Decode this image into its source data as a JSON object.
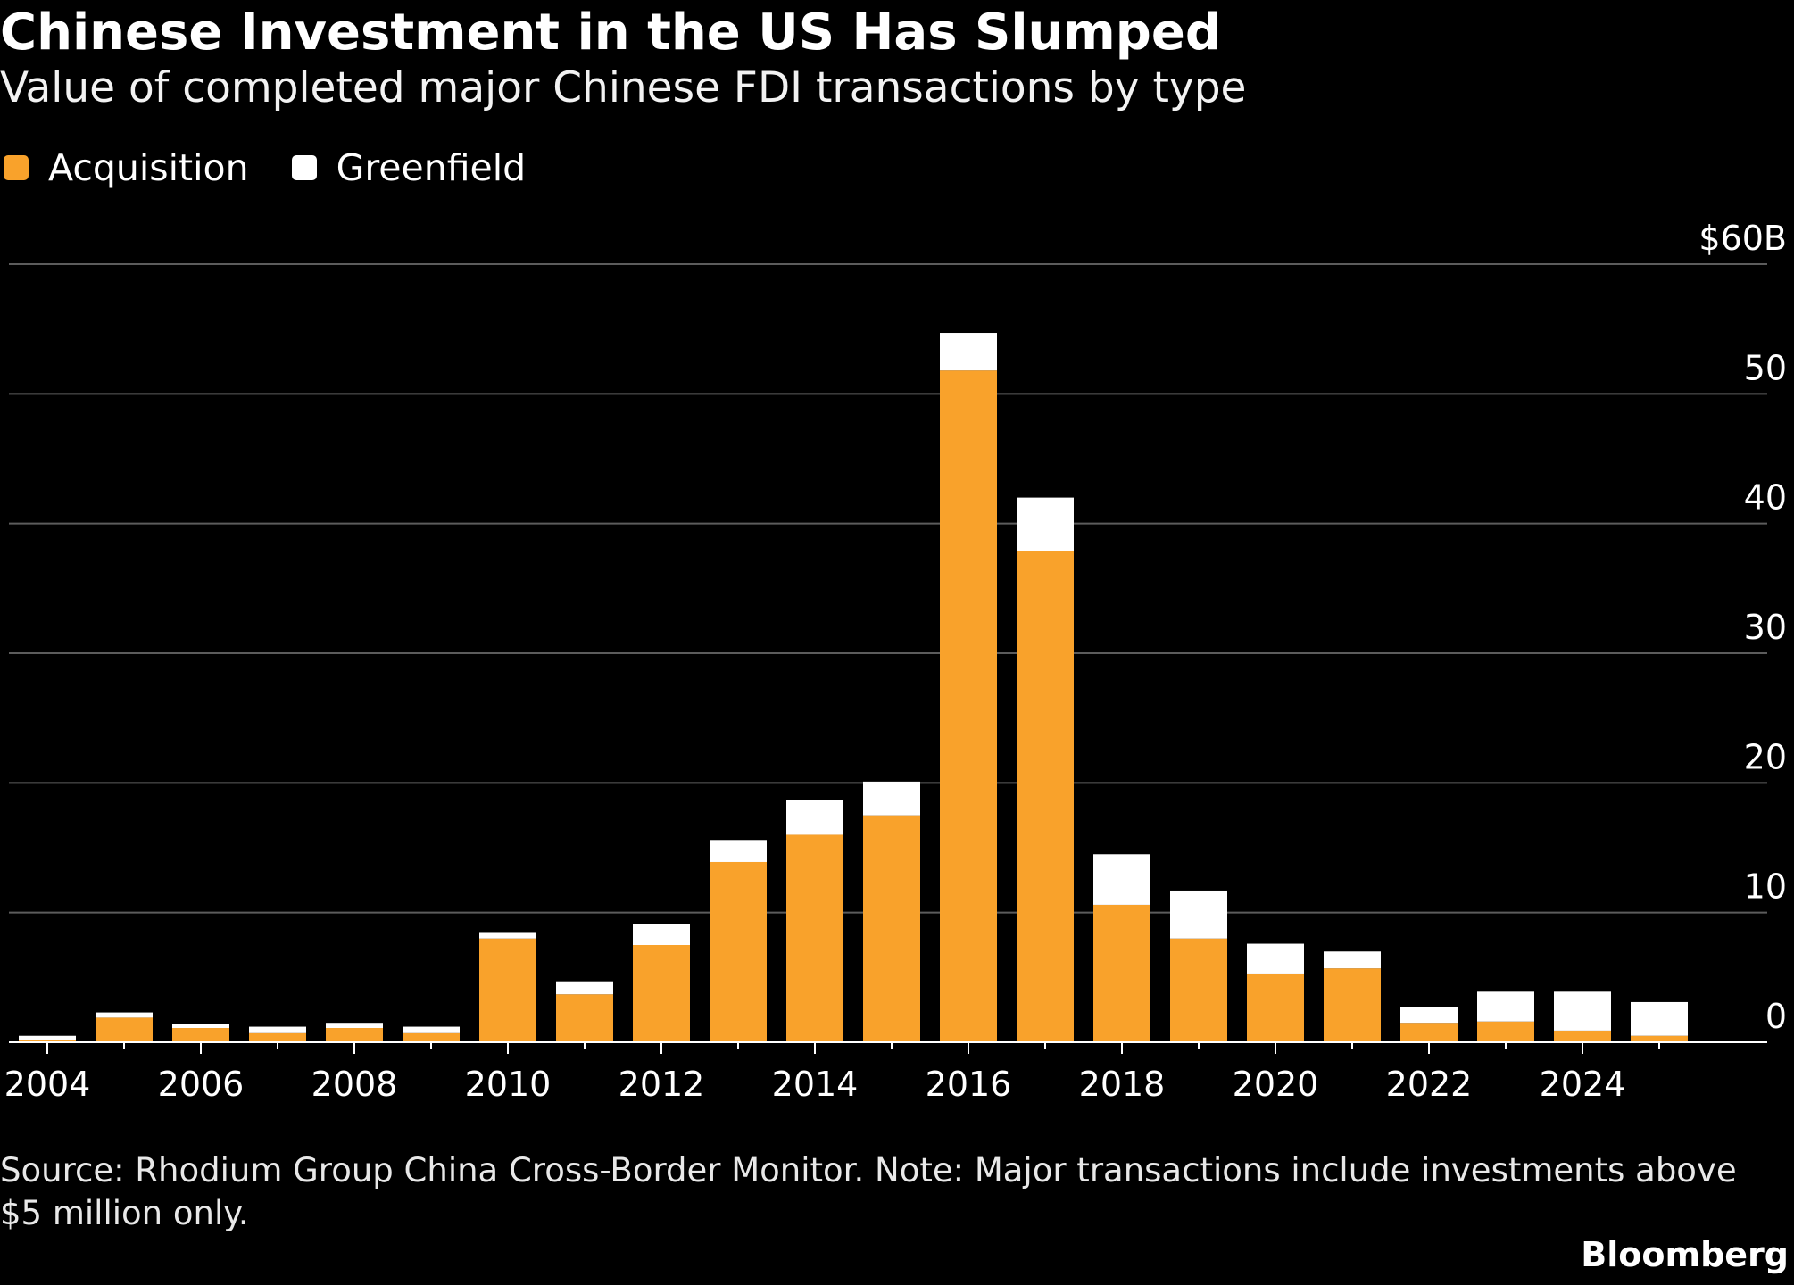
{
  "title": "Chinese Investment in the US Has Slumped",
  "subtitle": "Value of completed major Chinese FDI transactions by type",
  "legend": [
    {
      "label": "Acquisition",
      "color": "#f9a22b"
    },
    {
      "label": "Greenfield",
      "color": "#ffffff"
    }
  ],
  "source": "Source: Rhodium Group China Cross-Border Monitor. Note: Major transactions include investments above $5 million only.",
  "brand": "Bloomberg",
  "chart_data": {
    "type": "bar",
    "stacked": true,
    "categories": [
      2004,
      2005,
      2006,
      2007,
      2008,
      2009,
      2010,
      2011,
      2012,
      2013,
      2014,
      2015,
      2016,
      2017,
      2018,
      2019,
      2020,
      2021,
      2022,
      2023,
      2024,
      2025
    ],
    "series": [
      {
        "name": "Acquisition",
        "color": "#f9a22b",
        "values": [
          0.2,
          1.9,
          1.1,
          0.7,
          1.1,
          0.7,
          8.0,
          3.7,
          7.5,
          13.9,
          16.0,
          17.5,
          51.8,
          37.9,
          10.6,
          8.0,
          5.3,
          5.7,
          1.5,
          1.6,
          0.9,
          0.5
        ]
      },
      {
        "name": "Greenfield",
        "color": "#ffffff",
        "values": [
          0.3,
          0.4,
          0.3,
          0.5,
          0.4,
          0.5,
          0.5,
          1.0,
          1.6,
          1.7,
          2.7,
          2.6,
          2.9,
          4.1,
          3.9,
          3.7,
          2.3,
          1.3,
          1.2,
          2.3,
          3.0,
          2.6
        ]
      }
    ],
    "ylim": [
      0,
      60
    ],
    "yticks": [
      {
        "value": 0,
        "label": "0"
      },
      {
        "value": 10,
        "label": "10"
      },
      {
        "value": 20,
        "label": "20"
      },
      {
        "value": 30,
        "label": "30"
      },
      {
        "value": 40,
        "label": "40"
      },
      {
        "value": 50,
        "label": "50"
      },
      {
        "value": 60,
        "label": "$60B"
      }
    ],
    "xtick_labels": [
      "2004",
      "2006",
      "2008",
      "2010",
      "2012",
      "2014",
      "2016",
      "2018",
      "2020",
      "2022",
      "2024"
    ],
    "grid": true,
    "legend_position": "top-left",
    "ylabel": "",
    "xlabel": ""
  }
}
